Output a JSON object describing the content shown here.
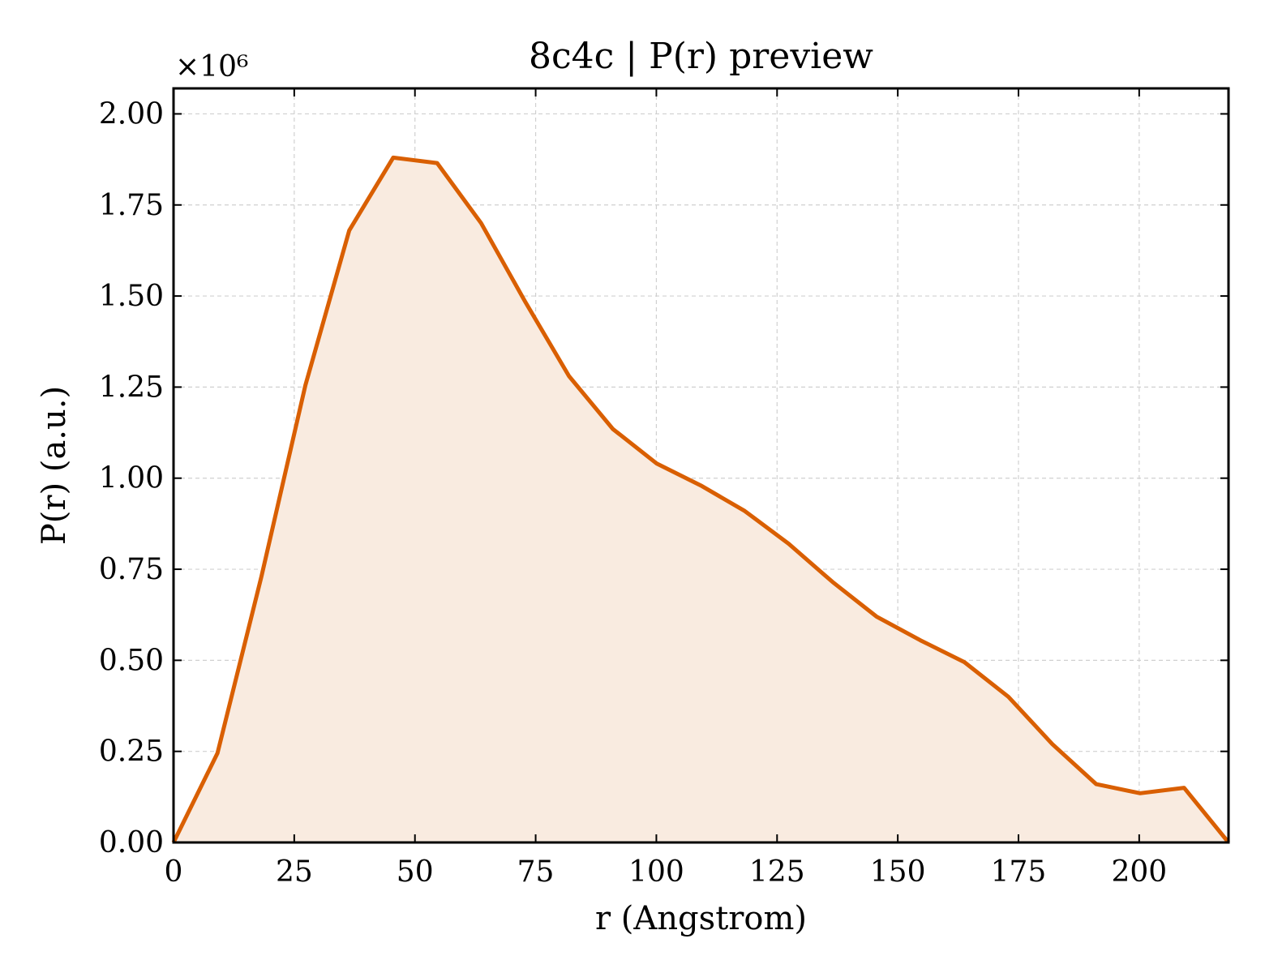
{
  "chart_data": {
    "type": "area",
    "title": "8c4c | P(r) preview",
    "xlabel": "r (Angstrom)",
    "ylabel": "P(r) (a.u.)",
    "y_multiplier_label": "×10⁶",
    "x_ticks": [
      "0",
      "25",
      "50",
      "75",
      "100",
      "125",
      "150",
      "175",
      "200"
    ],
    "y_ticks": [
      "0.00",
      "0.25",
      "0.50",
      "0.75",
      "1.00",
      "1.25",
      "1.50",
      "1.75",
      "2.00"
    ],
    "xlim": [
      0,
      218.5
    ],
    "ylim": [
      0,
      2.07
    ],
    "grid": true,
    "legend": "none",
    "colors": {
      "line": "#d95f02",
      "fill": "#f9ebe0",
      "grid": "#d0d0d0"
    },
    "series": [
      {
        "x": [
          0,
          9.1,
          18.2,
          27.3,
          36.4,
          45.5,
          54.6,
          63.7,
          72.8,
          81.9,
          91.0,
          100.1,
          109.2,
          118.3,
          127.4,
          136.5,
          145.6,
          154.7,
          163.8,
          172.9,
          182.0,
          191.1,
          200.2,
          209.3,
          218.5
        ],
        "y": [
          0.0,
          0.245,
          0.73,
          1.255,
          1.68,
          1.88,
          1.865,
          1.7,
          1.485,
          1.28,
          1.135,
          1.04,
          0.98,
          0.91,
          0.82,
          0.715,
          0.62,
          0.555,
          0.495,
          0.4,
          0.27,
          0.16,
          0.135,
          0.15,
          0.0
        ]
      }
    ]
  }
}
